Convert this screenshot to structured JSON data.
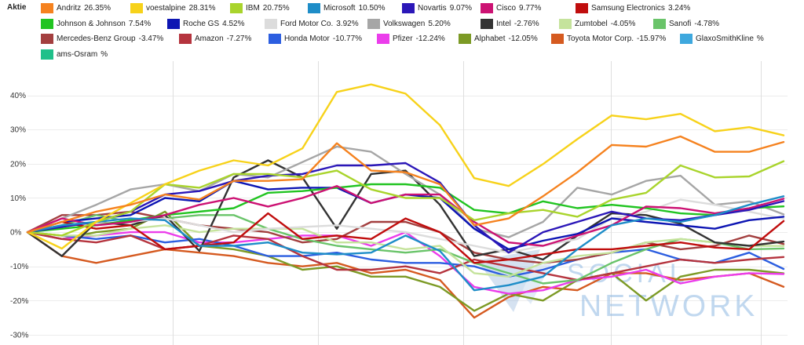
{
  "chart_data": {
    "type": "line",
    "legend": {
      "title": "Aktie",
      "placement": "top"
    },
    "grid": true,
    "ylim": [
      -33,
      50
    ],
    "ytick_labels": [
      "40%",
      "30%",
      "20%",
      "10%",
      "0%",
      "-10%",
      "-20%",
      "-30%"
    ],
    "series": [
      {
        "name": "Andritz",
        "change": "26.35%",
        "color": "#f5821f",
        "values": [
          0,
          3,
          6,
          8,
          11,
          9.5,
          15,
          15,
          15.5,
          26,
          18,
          17.5,
          14,
          2,
          4,
          10.5,
          17.5,
          25.5,
          25,
          28,
          23.5,
          23.5,
          26.35
        ]
      },
      {
        "name": "voestalpine",
        "change": "28.31%",
        "color": "#f7d21a",
        "values": [
          0,
          -4.8,
          3,
          8.5,
          14,
          18,
          21,
          19.5,
          24.5,
          41,
          43.2,
          40.5,
          31.3,
          15.8,
          13.5,
          19.9,
          27.2,
          34.1,
          33,
          34.6,
          29.5,
          30.7,
          28.31
        ]
      },
      {
        "name": "IBM",
        "change": "20.75%",
        "color": "#a9d42c",
        "values": [
          0,
          -1,
          3,
          6,
          14,
          13,
          17,
          17,
          16,
          18,
          12.5,
          10,
          10,
          3.5,
          5.5,
          6.5,
          4.5,
          9.5,
          11.5,
          19.5,
          16,
          16.3,
          20.75
        ]
      },
      {
        "name": "Microsoft",
        "change": "10.50%",
        "color": "#1e8dc8",
        "values": [
          0,
          2,
          3,
          4,
          3.5,
          -4,
          -4,
          -3,
          -6,
          -6.5,
          -6,
          -1,
          -5.5,
          -17,
          -15.5,
          -13,
          -5,
          2,
          4,
          3,
          5,
          8,
          10.5
        ]
      },
      {
        "name": "Novartis",
        "change": "9.07%",
        "color": "#2b17b8",
        "values": [
          0,
          1.5,
          3,
          6,
          11,
          12,
          15,
          16.5,
          17,
          19.5,
          19.5,
          20.2,
          14.5,
          2,
          -6,
          0,
          3,
          6,
          4,
          3.5,
          5,
          6.5,
          9.07
        ]
      },
      {
        "name": "Cisco",
        "change": "9.77%",
        "color": "#cc1273",
        "values": [
          0,
          4,
          2,
          3,
          5,
          8,
          10,
          7.5,
          10,
          13.5,
          8.5,
          11,
          11,
          3,
          -3,
          -4,
          -1,
          2,
          7.5,
          7,
          5.5,
          7,
          9.77
        ]
      },
      {
        "name": "Samsung Electronics",
        "change": "3.24%",
        "color": "#c00d0d",
        "values": [
          0,
          3,
          1,
          2,
          -5,
          -4,
          -3,
          5.5,
          -2,
          -1,
          -2,
          4,
          0,
          -9,
          -8,
          -6.5,
          -5,
          -5,
          -4,
          -3,
          -4.5,
          -5,
          3.24
        ]
      },
      {
        "name": "Johnson & Johnson",
        "change": "7.54%",
        "color": "#21c421",
        "values": [
          0,
          1,
          2,
          3.5,
          5,
          6,
          7,
          11.5,
          12,
          13,
          14,
          14,
          13,
          6.5,
          5.5,
          9,
          7,
          8,
          7,
          5.5,
          5,
          7,
          7.54
        ]
      },
      {
        "name": "Roche GS",
        "change": "4.52%",
        "color": "#0d15b3",
        "values": [
          0,
          3,
          4,
          5,
          10,
          9,
          15,
          12.5,
          13,
          13,
          8.5,
          11,
          10,
          1,
          -5,
          -2.5,
          -0.5,
          4,
          3,
          2,
          1,
          3.5,
          4.52
        ]
      },
      {
        "name": "Ford Motor Co.",
        "change": "3.92%",
        "color": "#dcdcdc",
        "values": [
          0,
          2,
          2.5,
          3,
          4,
          2,
          0,
          1,
          1.5,
          2,
          1,
          0,
          -2,
          -4,
          -6,
          -4,
          -2,
          4,
          6,
          9.5,
          8,
          6,
          3.92
        ]
      },
      {
        "name": "Volkswagen",
        "change": "5.20%",
        "color": "#a6a6a6",
        "values": [
          0,
          4,
          8,
          12.5,
          14,
          12,
          17,
          16,
          20.5,
          25,
          23.5,
          17,
          11,
          1,
          -1.5,
          3,
          13,
          11,
          15,
          16.5,
          8,
          9,
          5.2
        ]
      },
      {
        "name": "Intel",
        "change": "-2.76%",
        "color": "#333333",
        "values": [
          0,
          -7,
          3,
          2,
          5,
          -5.5,
          16,
          21,
          16,
          1,
          17,
          18,
          8,
          -7,
          -5,
          -8,
          -1,
          5.5,
          5,
          2.5,
          -3,
          -4,
          -2.76
        ]
      },
      {
        "name": "Zumtobel",
        "change": "-4.05%",
        "color": "#c5e39c",
        "values": [
          0,
          -1,
          -1,
          1,
          2,
          0,
          1,
          1,
          1,
          -3,
          -3,
          -5,
          -4,
          -12,
          -13,
          -9,
          -7,
          -6,
          -3,
          -2,
          -3,
          -4,
          -4.05
        ]
      },
      {
        "name": "Sanofi",
        "change": "-4.78%",
        "color": "#6ac46a",
        "values": [
          0,
          2,
          5,
          3,
          4,
          5,
          5,
          1,
          -2,
          -4,
          -5,
          -6,
          -5,
          -9,
          -12,
          -15,
          -14,
          -9,
          -5,
          -2,
          -3,
          -5,
          -4.78
        ]
      },
      {
        "name": "Mercedes-Benz Group",
        "change": "-3.47%",
        "color": "#a33f3f",
        "values": [
          0,
          5,
          5,
          6,
          4,
          2,
          1,
          0,
          -3,
          -2,
          3,
          3,
          0,
          -6,
          -8,
          -9,
          -8,
          -6,
          -3,
          -5,
          -4,
          -1,
          -3.47
        ]
      },
      {
        "name": "Amazon",
        "change": "-7.27%",
        "color": "#b5343e",
        "values": [
          0,
          -2,
          -3,
          -1,
          -5,
          -4,
          -1,
          -2,
          -7,
          -11,
          -11,
          -10,
          -12,
          -8,
          -10,
          -12,
          -14,
          -12,
          -10,
          -8,
          -9,
          -8,
          -7.27
        ]
      },
      {
        "name": "Honda Motor",
        "change": "-10.77%",
        "color": "#2c5ee0",
        "values": [
          0,
          -1,
          -2,
          -1,
          -3,
          -2,
          -4,
          -7,
          -7,
          -6,
          -8,
          -9,
          -9,
          -10,
          -13,
          -11,
          -8,
          -6,
          -5,
          -8,
          -9,
          -6,
          -10.77
        ]
      },
      {
        "name": "Pfizer",
        "change": "-12.24%",
        "color": "#eb3deb",
        "values": [
          0,
          -2,
          -1,
          0,
          0,
          -3,
          -3,
          -2,
          -1,
          -1,
          -4,
          0,
          -7,
          -16,
          -18,
          -17,
          -14,
          -13,
          -11,
          -15,
          -13,
          -12,
          -12.24
        ]
      },
      {
        "name": "Alphabet",
        "change": "-12.05%",
        "color": "#7c9a25",
        "values": [
          0,
          -2,
          0,
          1,
          6,
          -4,
          -5,
          -7,
          -11,
          -10,
          -13,
          -13,
          -16,
          -23,
          -18,
          -20,
          -14,
          -12,
          -20,
          -13,
          -11,
          -11,
          -12.05
        ]
      },
      {
        "name": "Toyota Motor Corp.",
        "change": "-15.97%",
        "color": "#d55a20",
        "values": [
          0,
          -7,
          -9,
          -7,
          -5,
          -6,
          -7,
          -9,
          -10,
          -9,
          -12,
          -11,
          -14,
          -25,
          -19,
          -16,
          -17,
          -12,
          -12,
          -14,
          -13,
          -12,
          -15.97
        ]
      },
      {
        "name": "GlaxoSmithKline",
        "change": "%",
        "color": "#3ea8de",
        "values": []
      },
      {
        "name": "ams-Osram",
        "change": "%",
        "color": "#20c08a",
        "values": []
      }
    ]
  },
  "watermark": {
    "line1": "SOCIAL",
    "line2": "NETWORK"
  }
}
